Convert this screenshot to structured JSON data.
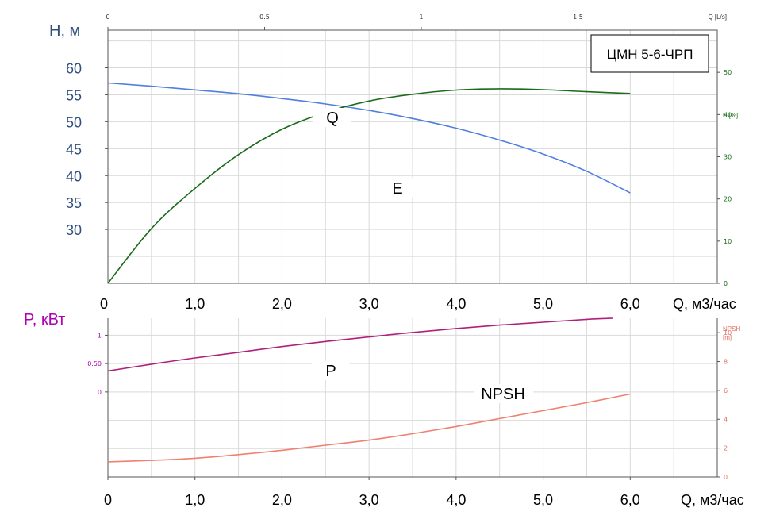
{
  "model_label": "ЦМН 5-6-ЧРП",
  "colors": {
    "head_axis": "#2f4f7f",
    "q_curve": "#4f7fdf",
    "e_curve": "#1a6b1a",
    "p_curve": "#b0207a",
    "power_axis": "#b000b0",
    "npsh_curve": "#f08070",
    "npsh_axis": "#e07060"
  },
  "chart_data": [
    {
      "type": "line",
      "name": "head-efficiency",
      "ylabel": "H, м",
      "xlabel": "Q, м3/час",
      "right_label": "E [%]",
      "top_label": "Q [L/s]",
      "xlim": [
        0,
        7.0
      ],
      "ylim": [
        20,
        67
      ],
      "y_ticks": [
        "30",
        "35",
        "40",
        "45",
        "50",
        "55",
        "60"
      ],
      "x_ticks": [
        "0",
        "1,0",
        "2,0",
        "3,0",
        "4,0",
        "5,0",
        "6,0"
      ],
      "top_ticks": [
        "0",
        "0.5",
        "1",
        "1.5"
      ],
      "right_ticks": [
        "0",
        "10",
        "20",
        "30",
        "40",
        "50"
      ],
      "right_lim": [
        0,
        60
      ],
      "series": [
        {
          "name": "Q",
          "x": [
            0,
            0.5,
            1.0,
            1.5,
            2.0,
            2.5,
            3.0,
            3.5,
            4.0,
            4.5,
            5.0,
            5.5,
            6.0
          ],
          "values": [
            57.2,
            56.6,
            55.9,
            55.2,
            54.3,
            53.3,
            52.1,
            50.6,
            48.8,
            46.6,
            44.0,
            40.8,
            36.8
          ]
        },
        {
          "name": "E",
          "x": [
            0,
            0.5,
            1.0,
            1.5,
            2.0,
            2.5,
            3.0,
            3.5,
            4.0,
            4.5,
            5.0,
            5.5,
            6.0
          ],
          "values": [
            0,
            13,
            22.5,
            30.5,
            36.5,
            40.5,
            43.2,
            44.8,
            45.8,
            46.1,
            45.9,
            45.4,
            45.0
          ]
        }
      ]
    },
    {
      "type": "line",
      "name": "power-npsh",
      "ylabel": "P, кВт",
      "xlabel": "Q, м3/час",
      "right_label_1": "NPSH",
      "right_label_2": "[m]",
      "xlim": [
        0,
        7.0
      ],
      "ylim": [
        -1.5,
        1.3
      ],
      "y_ticks": [
        "0",
        "0.50",
        "1"
      ],
      "x_ticks": [
        "0",
        "1,0",
        "2,0",
        "3,0",
        "4,0",
        "5,0",
        "6,0"
      ],
      "right_ticks": [
        "0",
        "2",
        "4",
        "6",
        "8",
        "10"
      ],
      "right_lim": [
        0,
        11
      ],
      "series": [
        {
          "name": "P",
          "x": [
            0,
            0.5,
            1.0,
            1.5,
            2.0,
            2.5,
            3.0,
            3.5,
            4.0,
            4.5,
            5.0,
            5.5,
            5.8
          ],
          "values": [
            0.37,
            0.49,
            0.6,
            0.7,
            0.8,
            0.89,
            0.97,
            1.05,
            1.12,
            1.18,
            1.23,
            1.28,
            1.3
          ]
        },
        {
          "name": "NPSH",
          "x": [
            0,
            0.5,
            1.0,
            1.5,
            2.0,
            2.5,
            3.0,
            3.5,
            4.0,
            4.5,
            5.0,
            5.5,
            6.0
          ],
          "values": [
            1.05,
            1.15,
            1.3,
            1.55,
            1.85,
            2.2,
            2.55,
            3.0,
            3.5,
            4.05,
            4.6,
            5.15,
            5.75
          ]
        }
      ]
    }
  ]
}
